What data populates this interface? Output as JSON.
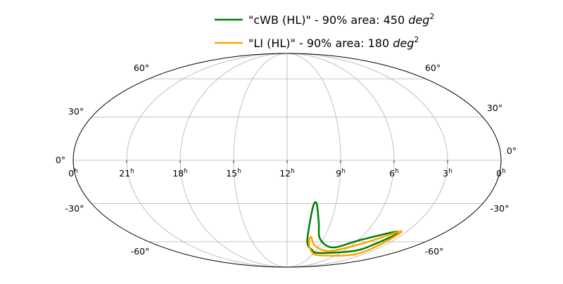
{
  "chart_data": {
    "type": "line",
    "projection": "mollweide",
    "title": "",
    "grid": true,
    "legend_placement": "top-center",
    "ra_unit": "h",
    "ra_tick_labels": [
      "0",
      "21",
      "18",
      "15",
      "12",
      "9",
      "6",
      "3",
      "0"
    ],
    "ra_tick_values_hours": [
      24,
      21,
      18,
      15,
      12,
      9,
      6,
      3,
      0
    ],
    "dec_tick_values": [
      60,
      30,
      0,
      -30,
      -60
    ],
    "dec_tick_labels": [
      "60°",
      "30°",
      "0°",
      "-30°",
      "-60°"
    ],
    "series": [
      {
        "name": "\"cWB (HL)\" - 90% area: 450 ",
        "name_math": "deg",
        "name_sup": "2",
        "color": "#008000",
        "points_ra_hours_dec_deg": [
          [
            3.91,
            -51.7
          ],
          [
            5.91,
            -58.8
          ],
          [
            7.56,
            -65.2
          ],
          [
            9.26,
            -57.6
          ],
          [
            9.81,
            -44.5
          ],
          [
            10.18,
            -30.3
          ],
          [
            10.38,
            -31.8
          ],
          [
            10.4,
            -51.7
          ],
          [
            10.16,
            -62.0
          ],
          [
            9.49,
            -67.2
          ],
          [
            8.42,
            -70.6
          ],
          [
            4.91,
            -68.5
          ],
          [
            4.07,
            -62.0
          ],
          [
            3.54,
            -53.5
          ]
        ]
      },
      {
        "name": "\"LI (HL)\" - 90% area: 180 ",
        "name_math": "deg",
        "name_sup": "2",
        "color": "#ffa500",
        "points_ra_hours_dec_deg": [
          [
            3.44,
            -51.1
          ],
          [
            5.08,
            -60.7
          ],
          [
            7.37,
            -68.5
          ],
          [
            9.35,
            -63.9
          ],
          [
            10.07,
            -55.8
          ],
          [
            10.08,
            -60.7
          ],
          [
            9.46,
            -68.5
          ],
          [
            8.13,
            -72.9
          ],
          [
            4.06,
            -72.2
          ],
          [
            3.51,
            -62.6
          ]
        ]
      }
    ]
  }
}
